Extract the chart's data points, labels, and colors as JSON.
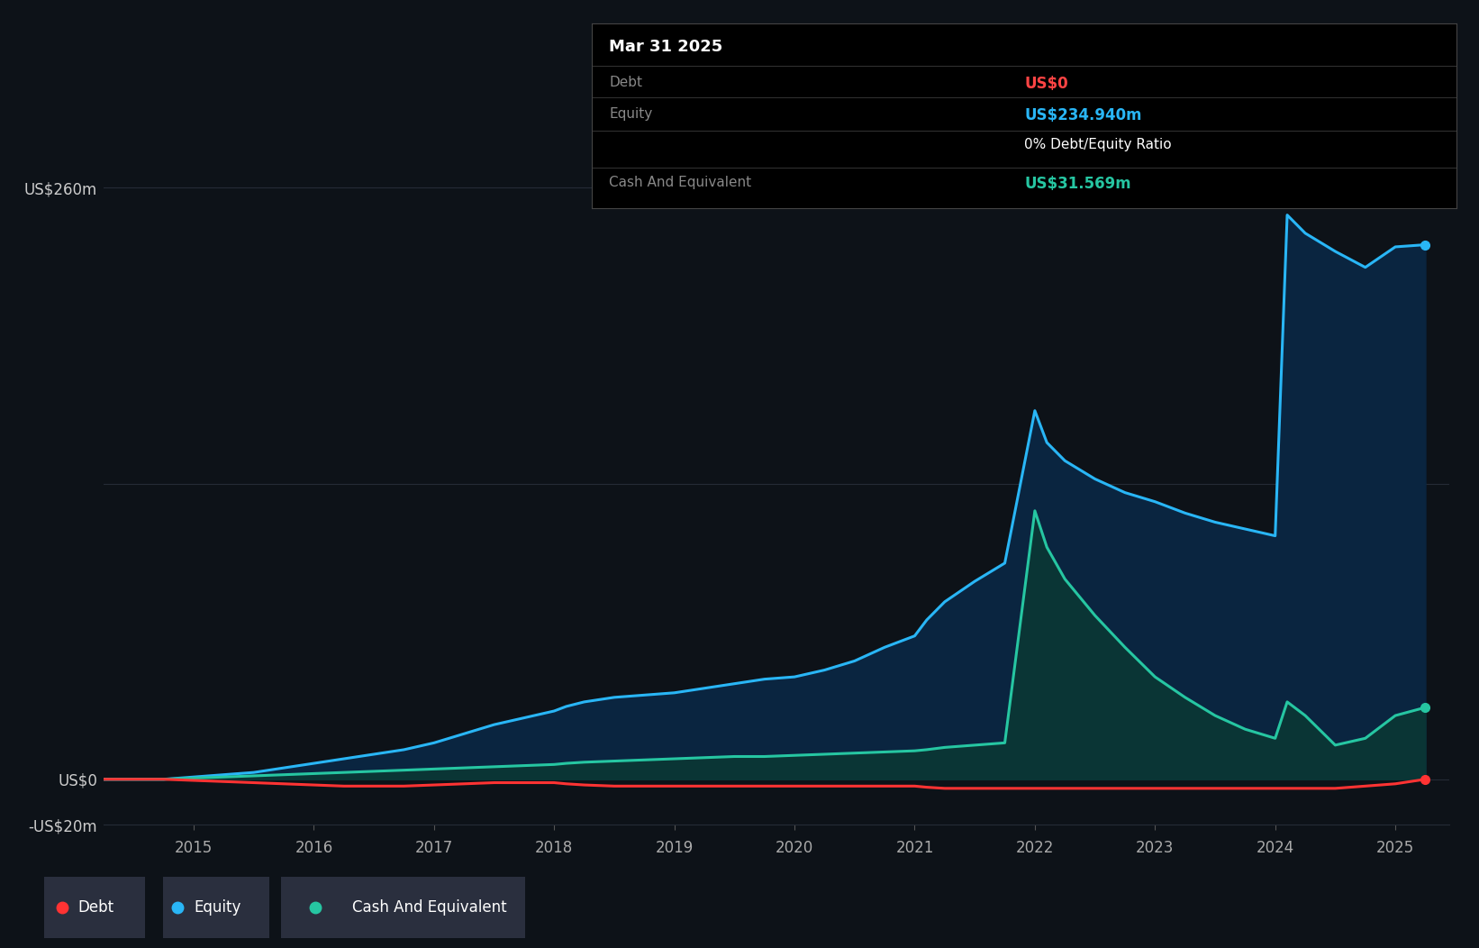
{
  "bg_color": "#0d1218",
  "chart_bg": "#0d1218",
  "grid_color": "#252b36",
  "debt_color": "#ff3333",
  "equity_color": "#29b6f6",
  "cash_color": "#26c6a2",
  "equity_fill_color": "#0a2540",
  "cash_fill_color": "#0a3535",
  "ylim": [
    -20,
    280
  ],
  "yticks": [
    -20,
    0,
    130,
    260
  ],
  "ytick_labels": [
    "-US$20m",
    "US$0",
    "",
    "US$260m"
  ],
  "xticks": [
    2015,
    2016,
    2017,
    2018,
    2019,
    2020,
    2021,
    2022,
    2023,
    2024,
    2025
  ],
  "xtick_labels": [
    "2015",
    "2016",
    "2017",
    "2018",
    "2019",
    "2020",
    "2021",
    "2022",
    "2023",
    "2024",
    "2025"
  ],
  "years": [
    2014.25,
    2014.5,
    2014.75,
    2015.0,
    2015.25,
    2015.5,
    2015.75,
    2016.0,
    2016.25,
    2016.5,
    2016.75,
    2017.0,
    2017.25,
    2017.5,
    2017.75,
    2018.0,
    2018.1,
    2018.25,
    2018.5,
    2018.75,
    2019.0,
    2019.25,
    2019.5,
    2019.75,
    2020.0,
    2020.25,
    2020.5,
    2020.75,
    2021.0,
    2021.1,
    2021.25,
    2021.5,
    2021.75,
    2022.0,
    2022.1,
    2022.25,
    2022.5,
    2022.75,
    2023.0,
    2023.25,
    2023.5,
    2023.75,
    2024.0,
    2024.1,
    2024.25,
    2024.5,
    2024.75,
    2025.0,
    2025.25
  ],
  "equity": [
    0,
    0,
    0,
    1,
    2,
    3,
    5,
    7,
    9,
    11,
    13,
    16,
    20,
    24,
    27,
    30,
    32,
    34,
    36,
    37,
    38,
    40,
    42,
    44,
    45,
    48,
    52,
    58,
    63,
    70,
    78,
    87,
    95,
    162,
    148,
    140,
    132,
    126,
    122,
    117,
    113,
    110,
    107,
    248,
    240,
    232,
    225,
    234,
    234.94
  ],
  "cash": [
    0,
    0,
    0,
    0.5,
    1,
    1.5,
    2,
    2.5,
    3,
    3.5,
    4,
    4.5,
    5,
    5.5,
    6,
    6.5,
    7,
    7.5,
    8,
    8.5,
    9,
    9.5,
    10,
    10,
    10.5,
    11,
    11.5,
    12,
    12.5,
    13,
    14,
    15,
    16,
    118,
    102,
    88,
    72,
    58,
    45,
    36,
    28,
    22,
    18,
    34,
    28,
    15,
    18,
    28,
    31.569
  ],
  "debt": [
    0,
    0,
    0,
    -0.5,
    -1,
    -1.5,
    -2,
    -2.5,
    -3,
    -3,
    -3,
    -2.5,
    -2,
    -1.5,
    -1.5,
    -1.5,
    -2,
    -2.5,
    -3,
    -3,
    -3,
    -3,
    -3,
    -3,
    -3,
    -3,
    -3,
    -3,
    -3,
    -3.5,
    -4,
    -4,
    -4,
    -4,
    -4,
    -4,
    -4,
    -4,
    -4,
    -4,
    -4,
    -4,
    -4,
    -4,
    -4,
    -4,
    -3,
    -2,
    0
  ],
  "tooltip": {
    "date": "Mar 31 2025",
    "debt_label": "Debt",
    "debt_value": "US$0",
    "equity_label": "Equity",
    "equity_value": "US$234.940m",
    "ratio_text": "0% Debt/Equity Ratio",
    "cash_label": "Cash And Equivalent",
    "cash_value": "US$31.569m",
    "debt_color": "#ff4444",
    "equity_color": "#29b6f6",
    "cash_color": "#26c6a2",
    "ratio_color": "#ffffff",
    "gray_label": "#888888"
  },
  "legend": [
    {
      "label": "Debt",
      "color": "#ff3333"
    },
    {
      "label": "Equity",
      "color": "#29b6f6"
    },
    {
      "label": "Cash And Equivalent",
      "color": "#26c6a2"
    }
  ]
}
